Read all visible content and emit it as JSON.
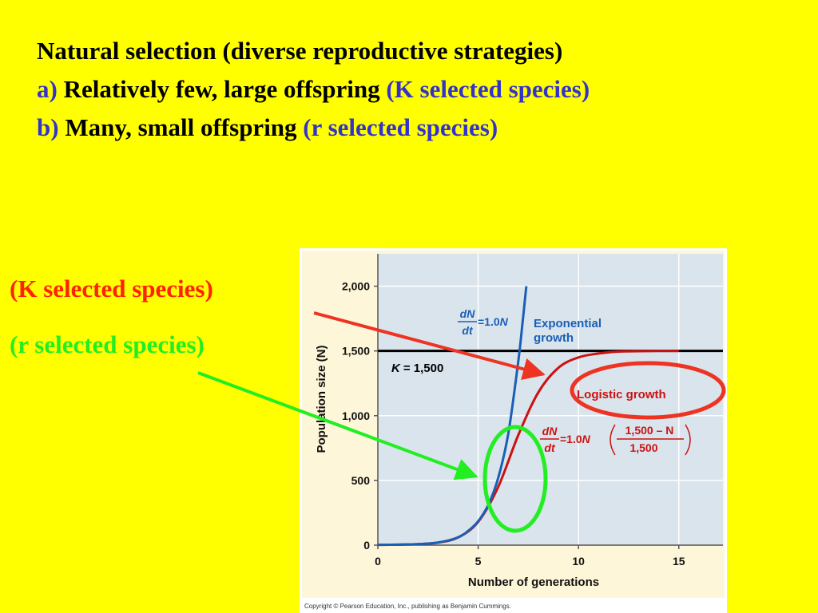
{
  "title": {
    "line1": "Natural selection (diverse reproductive strategies)",
    "line2": {
      "prefix": "a)",
      "main": "Relatively few, large offspring",
      "suffix": "(K selected species)"
    },
    "line3": {
      "prefix": "b)",
      "main": "Many, small offspring",
      "suffix": "(r selected species)"
    }
  },
  "side_labels": {
    "k": {
      "open": "(",
      "letter": "K",
      "rest": " selected species)"
    },
    "r": "(r selected species)"
  },
  "figure": {
    "copyright": "Copyright © Pearson Education, Inc., publishing as Benjamin Cummings.",
    "k_line_label_var": "K",
    "k_line_label_value": "= 1,500",
    "exponential_label": [
      "Exponential",
      "growth"
    ],
    "logistic_label": "Logistic growth",
    "exp_eq": {
      "num": "dN",
      "den": "dt",
      "rhs": "=1.0",
      "var": "N"
    },
    "log_eq": {
      "num": "dN",
      "den": "dt",
      "rhs": "=1.0",
      "var": "N",
      "frac_num": "1,500 – N",
      "frac_den": "1,500"
    }
  },
  "colors": {
    "background": "#ffff00",
    "plot_area": "#d9e4ed",
    "panel": "#fdf6d8",
    "exponential": "#1a5fb4",
    "logistic": "#cc1111",
    "k_arrow": "#ee3322",
    "r_arrow": "#22ee22",
    "logistic_ellipse": "#ee3322",
    "r_ellipse": "#22ee22"
  },
  "chart_data": {
    "type": "line",
    "xlabel": "Number of generations",
    "ylabel": "Population size (N)",
    "xlim": [
      0,
      17.2
    ],
    "ylim": [
      0,
      2250
    ],
    "x_ticks": [
      0,
      5,
      10,
      15
    ],
    "y_ticks": [
      0,
      500,
      1000,
      1500,
      2000
    ],
    "x_tick_labels": [
      "0",
      "5",
      "10",
      "15"
    ],
    "y_tick_labels": [
      "0",
      "500",
      "1,000",
      "1,500",
      "2,000"
    ],
    "grid": true,
    "reference_line": {
      "y": 1500
    },
    "series": [
      {
        "name": "Exponential growth",
        "x": [
          0,
          1,
          2,
          3,
          4,
          4.5,
          5,
          5.5,
          6,
          6.5,
          7,
          7.2,
          7.4,
          7.5
        ],
        "y": [
          2,
          4,
          8,
          20,
          60,
          110,
          185,
          310,
          520,
          860,
          1420,
          1700,
          2000,
          2000
        ]
      },
      {
        "name": "Logistic growth",
        "x": [
          0,
          1,
          2,
          3,
          4,
          5,
          6,
          7,
          8,
          9,
          10,
          11,
          12,
          13,
          14,
          15
        ],
        "y": [
          2,
          4,
          8,
          20,
          60,
          180,
          450,
          850,
          1180,
          1370,
          1450,
          1480,
          1495,
          1498,
          1500,
          1500
        ]
      }
    ]
  }
}
